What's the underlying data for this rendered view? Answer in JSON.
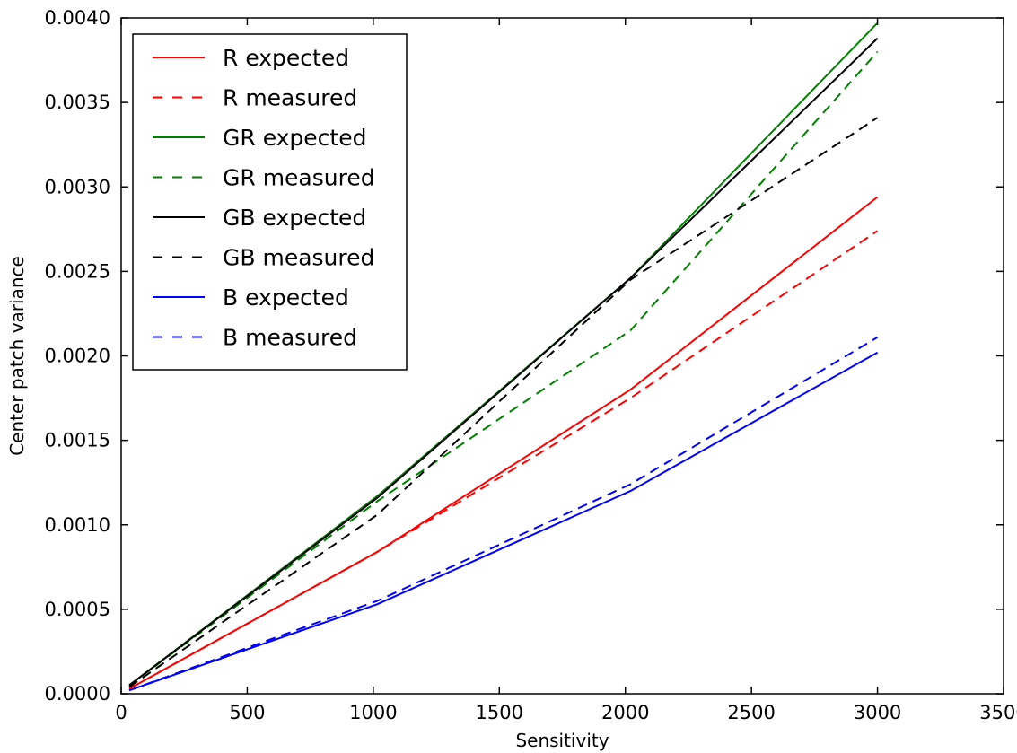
{
  "chart_data": {
    "type": "line",
    "title": "",
    "xlabel": "Sensitivity",
    "ylabel": "Center patch variance",
    "xlim": [
      0,
      3500
    ],
    "ylim": [
      0.0,
      0.004
    ],
    "grid": false,
    "legend_position": "top-left",
    "x_ticks": [
      {
        "value": 0,
        "label": "0"
      },
      {
        "value": 500,
        "label": "500"
      },
      {
        "value": 1000,
        "label": "1000"
      },
      {
        "value": 1500,
        "label": "1500"
      },
      {
        "value": 2000,
        "label": "2000"
      },
      {
        "value": 2500,
        "label": "2500"
      },
      {
        "value": 3000,
        "label": "3000"
      },
      {
        "value": 3500,
        "label": "3500"
      }
    ],
    "y_ticks": [
      {
        "value": 0.0,
        "label": "0.0000"
      },
      {
        "value": 0.0005,
        "label": "0.0005"
      },
      {
        "value": 0.001,
        "label": "0.0010"
      },
      {
        "value": 0.0015,
        "label": "0.0015"
      },
      {
        "value": 0.002,
        "label": "0.0020"
      },
      {
        "value": 0.0025,
        "label": "0.0025"
      },
      {
        "value": 0.003,
        "label": "0.0030"
      },
      {
        "value": 0.0035,
        "label": "0.0035"
      },
      {
        "value": 0.004,
        "label": "0.0040"
      }
    ],
    "series": [
      {
        "name": "R expected",
        "color": "#ff0000",
        "dash": false,
        "x": [
          32,
          1016,
          2020,
          3000
        ],
        "y": [
          3e-05,
          0.00084,
          0.0018,
          0.00294
        ]
      },
      {
        "name": "R measured",
        "color": "#ff0000",
        "dash": true,
        "x": [
          32,
          1016,
          2020,
          3000
        ],
        "y": [
          3e-05,
          0.00084,
          0.00175,
          0.00274
        ]
      },
      {
        "name": "GR expected",
        "color": "#008000",
        "dash": false,
        "x": [
          32,
          1016,
          2020,
          3000
        ],
        "y": [
          5e-05,
          0.00117,
          0.00246,
          0.00397
        ]
      },
      {
        "name": "GR measured",
        "color": "#008000",
        "dash": true,
        "x": [
          32,
          1016,
          2020,
          3000
        ],
        "y": [
          5e-05,
          0.00114,
          0.00215,
          0.0038
        ]
      },
      {
        "name": "GB expected",
        "color": "#000000",
        "dash": false,
        "x": [
          32,
          1016,
          2020,
          3000
        ],
        "y": [
          5e-05,
          0.00116,
          0.00246,
          0.00388
        ]
      },
      {
        "name": "GB measured",
        "color": "#000000",
        "dash": true,
        "x": [
          32,
          1016,
          2020,
          3000
        ],
        "y": [
          4e-05,
          0.00106,
          0.00245,
          0.00341
        ]
      },
      {
        "name": "B expected",
        "color": "#0000ff",
        "dash": false,
        "x": [
          32,
          1016,
          2020,
          3000
        ],
        "y": [
          2e-05,
          0.00053,
          0.0012,
          0.00202
        ]
      },
      {
        "name": "B measured",
        "color": "#0000ff",
        "dash": true,
        "x": [
          32,
          1016,
          2020,
          3000
        ],
        "y": [
          2e-05,
          0.00055,
          0.00124,
          0.00211
        ]
      }
    ]
  }
}
